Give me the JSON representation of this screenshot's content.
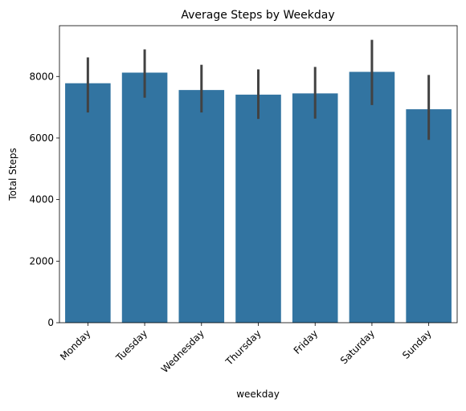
{
  "chart_data": {
    "type": "bar",
    "title": "Average Steps by Weekday",
    "xlabel": "weekday",
    "ylabel": "Total Steps",
    "categories": [
      "Monday",
      "Tuesday",
      "Wednesday",
      "Thursday",
      "Friday",
      "Saturday",
      "Sunday"
    ],
    "values": [
      7780,
      8125,
      7560,
      7410,
      7450,
      8150,
      6935
    ],
    "error_bars": {
      "low": [
        6830,
        7310,
        6830,
        6620,
        6630,
        7070,
        5940
      ],
      "high": [
        8620,
        8880,
        8380,
        8230,
        8310,
        9190,
        8050
      ]
    },
    "yticks": [
      0,
      2000,
      4000,
      6000,
      8000
    ],
    "ylim": [
      0,
      9650
    ],
    "grid": false,
    "bar_color": "#3274a1",
    "error_color": "#424242",
    "tick_rotation_deg": 45
  }
}
